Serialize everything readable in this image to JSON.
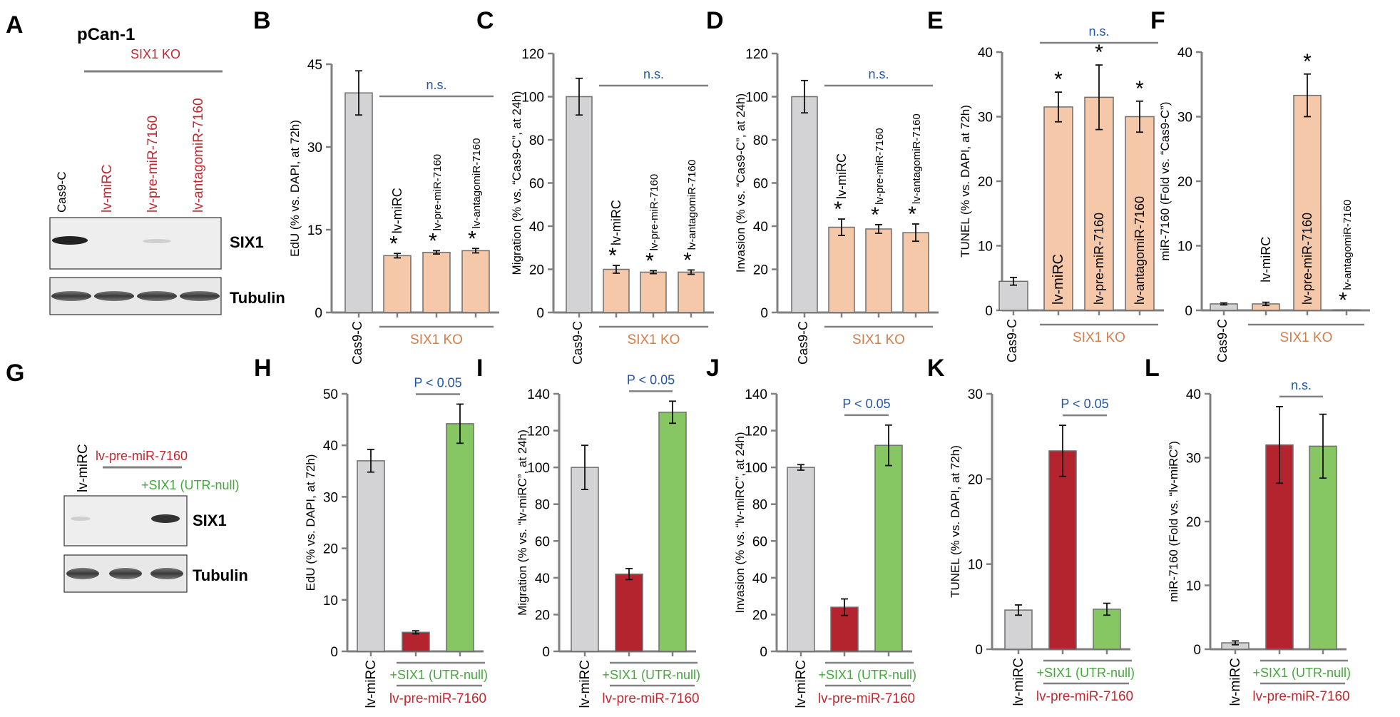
{
  "colors": {
    "grey": "#d3d3d5",
    "peach": "#f6c8aa",
    "red": "#b3242f",
    "green": "#86c663",
    "blue_text": "#2457a5",
    "red_text": "#c0282f",
    "green_text": "#45a83d",
    "orange_text": "#d07f4c",
    "axis": "#808080"
  },
  "panels": {
    "A": {
      "letter": "A",
      "cell_line": "pCan-1",
      "group_label": "SIX1 KO",
      "lanes": [
        "Cas9-C",
        "lv-miRC",
        "lv-pre-miR-7160",
        "lv-antagomiR-7160"
      ],
      "blot_labels": [
        "SIX1",
        "Tubulin"
      ]
    },
    "G": {
      "letter": "G",
      "lanes": [
        "lv-miRC",
        "lv-pre-miR-7160",
        "+SIX1 (UTR-null)"
      ],
      "blot_labels": [
        "SIX1",
        "Tubulin"
      ]
    }
  },
  "chart_data": [
    {
      "panel": "B",
      "type": "bar",
      "ylabel": "EdU (% vs. DAPI, at 72h)",
      "ylim": [
        0,
        45
      ],
      "yticks": [
        0,
        15,
        30,
        45
      ],
      "categories": [
        "Cas9-C",
        "lv-miRC",
        "lv-pre-miR-7160",
        "lv-antagomiR-7160"
      ],
      "values": [
        39.8,
        10.3,
        10.9,
        11.2
      ],
      "errors": [
        4.0,
        0.4,
        0.3,
        0.4
      ],
      "bar_colors": [
        "grey",
        "peach",
        "peach",
        "peach"
      ],
      "inside_labels": [
        "",
        "lv-miRC",
        "lv-pre-miR-7160",
        "lv-antagomiR-7160"
      ],
      "stars": [
        false,
        true,
        true,
        true
      ],
      "group_label": "SIX1 KO",
      "group_color": "orange_text",
      "sig": "n.s.",
      "sig_color": "blue_text"
    },
    {
      "panel": "C",
      "type": "bar",
      "ylabel": "Migration (% vs. “Cas9-C”, at 24h)",
      "ylim": [
        0,
        120
      ],
      "yticks": [
        0,
        20,
        40,
        60,
        80,
        100,
        120
      ],
      "categories": [
        "Cas9-C",
        "lv-miRC",
        "lv-pre-miR-7160",
        "lv-antagomiR-7160"
      ],
      "values": [
        100,
        20,
        18.7,
        18.7
      ],
      "errors": [
        8.5,
        1.8,
        0.7,
        1.0
      ],
      "bar_colors": [
        "grey",
        "peach",
        "peach",
        "peach"
      ],
      "inside_labels": [
        "",
        "lv-miRC",
        "lv-pre-miR-7160",
        "lv-antagomiR-7160"
      ],
      "stars": [
        false,
        true,
        true,
        true
      ],
      "group_label": "SIX1 KO",
      "group_color": "orange_text",
      "sig": "n.s.",
      "sig_color": "blue_text"
    },
    {
      "panel": "D",
      "type": "bar",
      "ylabel": "Invasion (% vs. “Cas9-C”, at 24h)",
      "ylim": [
        0,
        120
      ],
      "yticks": [
        0,
        20,
        40,
        60,
        80,
        100,
        120
      ],
      "categories": [
        "Cas9-C",
        "lv-miRC",
        "lv-pre-miR-7160",
        "lv-antagomiR-7160"
      ],
      "values": [
        100,
        39.5,
        38.7,
        37
      ],
      "errors": [
        7.5,
        3.8,
        2.0,
        4.0
      ],
      "bar_colors": [
        "grey",
        "peach",
        "peach",
        "peach"
      ],
      "inside_labels": [
        "",
        "lv-miRC",
        "lv-pre-miR-7160",
        "lv-antagomiR-7160"
      ],
      "stars": [
        false,
        true,
        true,
        true
      ],
      "group_label": "SIX1 KO",
      "group_color": "orange_text",
      "sig": "n.s.",
      "sig_color": "blue_text"
    },
    {
      "panel": "E",
      "type": "bar",
      "ylabel": "TUNEL (% vs. DAPI, at 72h)",
      "ylim": [
        0,
        40
      ],
      "yticks": [
        0,
        10,
        20,
        30,
        40
      ],
      "categories": [
        "Cas9-C",
        "lv-miRC",
        "lv-pre-miR-7160",
        "lv-antagomiR-7160"
      ],
      "values": [
        4.5,
        31.5,
        33,
        30
      ],
      "errors": [
        0.6,
        2.3,
        5.0,
        2.4
      ],
      "bar_colors": [
        "grey",
        "peach",
        "peach",
        "peach"
      ],
      "inside_labels": [
        "",
        "lv-miRC",
        "lv-pre-miR-7160",
        "lv-antagomiR-7160"
      ],
      "stars": [
        false,
        true,
        true,
        true
      ],
      "group_label": "SIX1 KO",
      "group_color": "orange_text",
      "sig": "n.s.",
      "sig_color": "blue_text"
    },
    {
      "panel": "F",
      "type": "bar",
      "ylabel": "miR-7160 (Fold vs. “Cas9-C”)",
      "ylim": [
        0,
        40
      ],
      "yticks": [
        0,
        10,
        20,
        30,
        40
      ],
      "categories": [
        "Cas9-C",
        "lv-miRC",
        "lv-pre-miR-7160",
        "lv-antagomiR-7160"
      ],
      "values": [
        1,
        1,
        33.3,
        0.05
      ],
      "errors": [
        0.15,
        0.25,
        3.3,
        0
      ],
      "bar_colors": [
        "grey",
        "peach",
        "peach",
        "peach"
      ],
      "inside_labels": [
        "",
        "lv-miRC",
        "lv-pre-miR-7160",
        "lv-antagomiR-7160"
      ],
      "stars": [
        false,
        false,
        true,
        true
      ],
      "group_label": "SIX1 KO",
      "group_color": "orange_text",
      "sig": "",
      "sig_color": "blue_text"
    },
    {
      "panel": "H",
      "type": "bar",
      "ylabel": "EdU (% vs. DAPI, at 72h)",
      "ylim": [
        0,
        50
      ],
      "yticks": [
        0,
        10,
        20,
        30,
        40,
        50
      ],
      "categories": [
        "lv-miRC",
        "",
        "+SIX1 (UTR-null)"
      ],
      "values": [
        37,
        3.7,
        44.2
      ],
      "errors": [
        2.2,
        0.3,
        3.8
      ],
      "bar_colors": [
        "grey",
        "red",
        "green"
      ],
      "group_label": "lv-pre-miR-7160",
      "group_color": "red_text",
      "sig": "P < 0.05",
      "sig_color": "blue_text"
    },
    {
      "panel": "I",
      "type": "bar",
      "ylabel": "Migration (% vs. “lv-miRC”, at 24h)",
      "ylim": [
        0,
        140
      ],
      "yticks": [
        0,
        20,
        40,
        60,
        80,
        100,
        120,
        140
      ],
      "categories": [
        "lv-miRC",
        "",
        "+SIX1 (UTR-null)"
      ],
      "values": [
        100,
        42,
        130
      ],
      "errors": [
        12,
        3,
        6
      ],
      "bar_colors": [
        "grey",
        "red",
        "green"
      ],
      "group_label": "lv-pre-miR-7160",
      "group_color": "red_text",
      "sig": "P < 0.05",
      "sig_color": "blue_text"
    },
    {
      "panel": "J",
      "type": "bar",
      "ylabel": "Invasion (% vs. “lv-miRC”, at 24h)",
      "ylim": [
        0,
        140
      ],
      "yticks": [
        0,
        20,
        40,
        60,
        80,
        100,
        120,
        140
      ],
      "categories": [
        "lv-miRC",
        "",
        "+SIX1 (UTR-null)"
      ],
      "values": [
        100,
        24,
        112
      ],
      "errors": [
        1.5,
        4.5,
        11
      ],
      "bar_colors": [
        "grey",
        "red",
        "green"
      ],
      "group_label": "lv-pre-miR-7160",
      "group_color": "red_text",
      "sig": "P < 0.05",
      "sig_color": "blue_text"
    },
    {
      "panel": "K",
      "type": "bar",
      "ylabel": "TUNEL (% vs. DAPI, at 72h)",
      "ylim": [
        0,
        30
      ],
      "yticks": [
        0,
        10,
        20,
        30
      ],
      "categories": [
        "lv-miRC",
        "",
        "+SIX1 (UTR-null)"
      ],
      "values": [
        4.6,
        23.3,
        4.7
      ],
      "errors": [
        0.6,
        3.0,
        0.7
      ],
      "bar_colors": [
        "grey",
        "red",
        "green"
      ],
      "group_label": "lv-pre-miR-7160",
      "group_color": "red_text",
      "sig": "P < 0.05",
      "sig_color": "blue_text"
    },
    {
      "panel": "L",
      "type": "bar",
      "ylabel": "miR-7160 (Fold vs. “lv-miRC”)",
      "ylim": [
        0,
        40
      ],
      "yticks": [
        0,
        10,
        20,
        30,
        40
      ],
      "categories": [
        "lv-miRC",
        "",
        "+SIX1 (UTR-null)"
      ],
      "values": [
        1,
        32,
        31.8
      ],
      "errors": [
        0.3,
        6.0,
        5.0
      ],
      "bar_colors": [
        "grey",
        "red",
        "green"
      ],
      "group_label": "lv-pre-miR-7160",
      "group_color": "red_text",
      "sig": "n.s.",
      "sig_color": "blue_text"
    }
  ]
}
